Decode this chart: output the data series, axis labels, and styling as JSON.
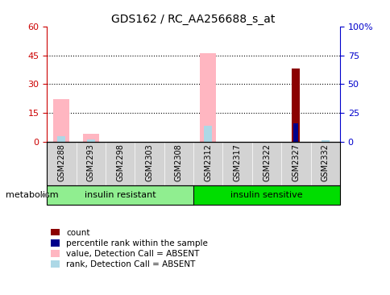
{
  "title": "GDS162 / RC_AA256688_s_at",
  "samples": [
    "GSM2288",
    "GSM2293",
    "GSM2298",
    "GSM2303",
    "GSM2308",
    "GSM2312",
    "GSM2317",
    "GSM2322",
    "GSM2327",
    "GSM2332"
  ],
  "count": [
    0,
    0,
    0,
    0,
    0,
    0,
    0,
    0,
    38,
    0
  ],
  "percentile_rank": [
    0,
    0,
    0,
    0,
    0,
    0,
    0,
    0,
    16,
    0
  ],
  "value_absent": [
    22,
    4,
    0,
    0,
    0,
    46,
    0,
    0,
    0,
    0
  ],
  "rank_absent": [
    5,
    2,
    0,
    0,
    0,
    14,
    0,
    0,
    0,
    1
  ],
  "ylim_left": [
    0,
    60
  ],
  "ylim_right": [
    0,
    100
  ],
  "yticks_left": [
    0,
    15,
    30,
    45,
    60
  ],
  "yticks_right": [
    0,
    25,
    50,
    75,
    100
  ],
  "ytick_labels_right": [
    "0",
    "25",
    "50",
    "75",
    "100%"
  ],
  "color_count": "#8B0000",
  "color_rank": "#00008B",
  "color_value_absent": "#FFB6C1",
  "color_rank_absent": "#ADD8E6",
  "color_ir": "#90EE90",
  "color_is": "#00DD00",
  "legend_items": [
    {
      "label": "count",
      "color": "#8B0000"
    },
    {
      "label": "percentile rank within the sample",
      "color": "#00008B"
    },
    {
      "label": "value, Detection Call = ABSENT",
      "color": "#FFB6C1"
    },
    {
      "label": "rank, Detection Call = ABSENT",
      "color": "#ADD8E6"
    }
  ],
  "bar_width": 0.55,
  "metabolism_label": "metabolism",
  "background_color": "#ffffff",
  "axis_left_color": "#CC0000",
  "axis_right_color": "#0000CC",
  "grid_yticks": [
    15,
    30,
    45
  ],
  "ir_group_label": "insulin resistant",
  "is_group_label": "insulin sensitive",
  "ir_indices": [
    0,
    4
  ],
  "is_indices": [
    5,
    9
  ]
}
